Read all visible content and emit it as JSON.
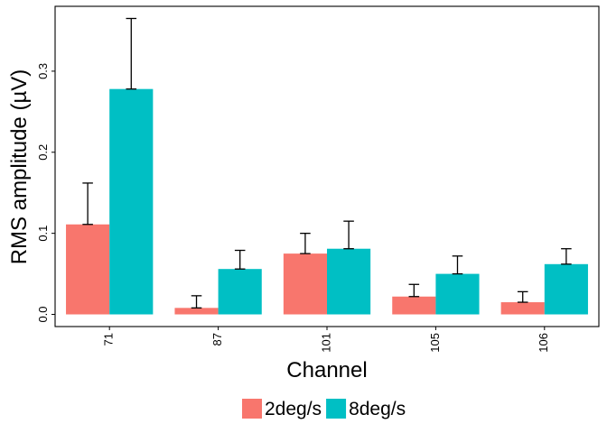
{
  "chart_data": {
    "type": "bar",
    "categories": [
      "71",
      "87",
      "101",
      "105",
      "106"
    ],
    "series": [
      {
        "name": "2deg/s",
        "color": "#F8766D",
        "values": [
          0.111,
          0.008,
          0.075,
          0.022,
          0.015
        ],
        "error": [
          0.051,
          0.015,
          0.025,
          0.015,
          0.013
        ]
      },
      {
        "name": "8deg/s",
        "color": "#00BFC4",
        "values": [
          0.278,
          0.056,
          0.081,
          0.05,
          0.062
        ],
        "error": [
          0.087,
          0.023,
          0.034,
          0.022,
          0.019
        ]
      }
    ],
    "xlabel": "Channel",
    "ylabel": "RMS amplitude (µV)",
    "ylim": [
      -0.015,
      0.38
    ],
    "yticks": [
      "0.0",
      "0.1",
      "0.2",
      "0.3"
    ],
    "legend_position": "bottom",
    "grid": false
  }
}
